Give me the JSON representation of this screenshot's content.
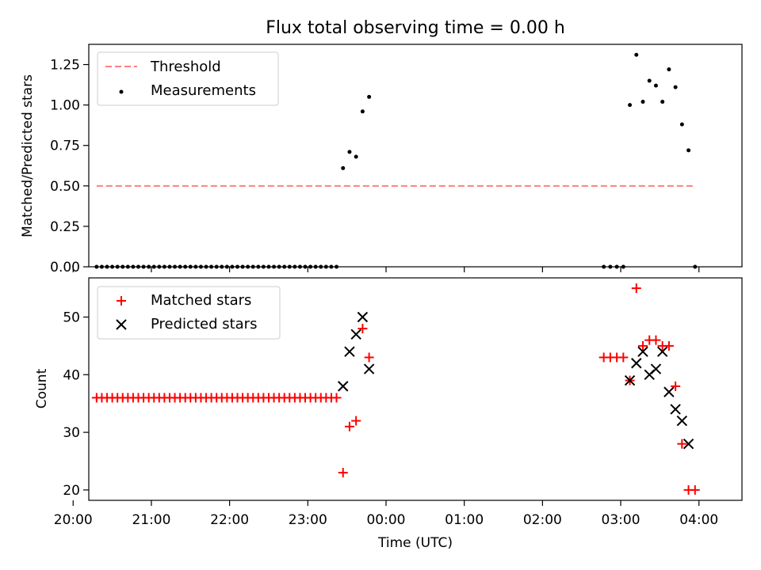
{
  "chart_data": [
    {
      "type": "scatter",
      "title": "Flux total observing time = 0.00 h",
      "ylabel": "Matched/Predicted stars",
      "ylim": [
        0,
        1.375
      ],
      "xlim": [
        "20:12",
        "04:33"
      ],
      "yticks": [
        "0.00",
        "0.25",
        "0.50",
        "0.75",
        "1.00",
        "1.25"
      ],
      "legend_position": "top-left",
      "series": [
        {
          "name": "Threshold",
          "style": "dashed-line",
          "color": "#ff7f7f",
          "points": [
            [
              "20:18",
              0.5
            ],
            [
              "03:56",
              0.5
            ]
          ]
        },
        {
          "name": "Measurements",
          "style": "dot",
          "color": "#000000",
          "points": [
            [
              "20:18",
              0.0
            ],
            [
              "20:22",
              0.0
            ],
            [
              "20:26",
              0.0
            ],
            [
              "20:30",
              0.0
            ],
            [
              "20:34",
              0.0
            ],
            [
              "20:38",
              0.0
            ],
            [
              "20:42",
              0.0
            ],
            [
              "20:46",
              0.0
            ],
            [
              "20:50",
              0.0
            ],
            [
              "20:54",
              0.0
            ],
            [
              "20:58",
              0.0
            ],
            [
              "21:02",
              0.0
            ],
            [
              "21:06",
              0.0
            ],
            [
              "21:10",
              0.0
            ],
            [
              "21:14",
              0.0
            ],
            [
              "21:18",
              0.0
            ],
            [
              "21:22",
              0.0
            ],
            [
              "21:26",
              0.0
            ],
            [
              "21:30",
              0.0
            ],
            [
              "21:34",
              0.0
            ],
            [
              "21:38",
              0.0
            ],
            [
              "21:42",
              0.0
            ],
            [
              "21:46",
              0.0
            ],
            [
              "21:50",
              0.0
            ],
            [
              "21:54",
              0.0
            ],
            [
              "21:58",
              0.0
            ],
            [
              "22:02",
              0.0
            ],
            [
              "22:06",
              0.0
            ],
            [
              "22:10",
              0.0
            ],
            [
              "22:14",
              0.0
            ],
            [
              "22:18",
              0.0
            ],
            [
              "22:22",
              0.0
            ],
            [
              "22:26",
              0.0
            ],
            [
              "22:30",
              0.0
            ],
            [
              "22:34",
              0.0
            ],
            [
              "22:38",
              0.0
            ],
            [
              "22:42",
              0.0
            ],
            [
              "22:46",
              0.0
            ],
            [
              "22:50",
              0.0
            ],
            [
              "22:54",
              0.0
            ],
            [
              "22:58",
              0.0
            ],
            [
              "23:02",
              0.0
            ],
            [
              "23:06",
              0.0
            ],
            [
              "23:10",
              0.0
            ],
            [
              "23:14",
              0.0
            ],
            [
              "23:18",
              0.0
            ],
            [
              "23:22",
              0.0
            ],
            [
              "23:27",
              0.61
            ],
            [
              "23:32",
              0.71
            ],
            [
              "23:37",
              0.68
            ],
            [
              "23:42",
              0.96
            ],
            [
              "23:47",
              1.05
            ],
            [
              "02:47",
              0.0
            ],
            [
              "02:52",
              0.0
            ],
            [
              "02:57",
              0.0
            ],
            [
              "03:02",
              0.0
            ],
            [
              "03:07",
              1.0
            ],
            [
              "03:12",
              1.31
            ],
            [
              "03:17",
              1.02
            ],
            [
              "03:22",
              1.15
            ],
            [
              "03:27",
              1.12
            ],
            [
              "03:32",
              1.02
            ],
            [
              "03:37",
              1.22
            ],
            [
              "03:42",
              1.11
            ],
            [
              "03:47",
              0.88
            ],
            [
              "03:52",
              0.72
            ],
            [
              "03:57",
              0.0
            ]
          ]
        }
      ]
    },
    {
      "type": "scatter",
      "xlabel": "Time (UTC)",
      "ylabel": "Count",
      "ylim": [
        18.2,
        56.8
      ],
      "xlim": [
        "20:12",
        "04:33"
      ],
      "yticks": [
        "20",
        "30",
        "40",
        "50"
      ],
      "xticks": [
        "20:00",
        "21:00",
        "22:00",
        "23:00",
        "00:00",
        "01:00",
        "02:00",
        "03:00",
        "04:00"
      ],
      "legend_position": "top-left",
      "series": [
        {
          "name": "Matched stars",
          "style": "plus",
          "color": "#ff0000",
          "points": [
            [
              "20:18",
              36
            ],
            [
              "20:22",
              36
            ],
            [
              "20:26",
              36
            ],
            [
              "20:30",
              36
            ],
            [
              "20:34",
              36
            ],
            [
              "20:38",
              36
            ],
            [
              "20:42",
              36
            ],
            [
              "20:46",
              36
            ],
            [
              "20:50",
              36
            ],
            [
              "20:54",
              36
            ],
            [
              "20:58",
              36
            ],
            [
              "21:02",
              36
            ],
            [
              "21:06",
              36
            ],
            [
              "21:10",
              36
            ],
            [
              "21:14",
              36
            ],
            [
              "21:18",
              36
            ],
            [
              "21:22",
              36
            ],
            [
              "21:26",
              36
            ],
            [
              "21:30",
              36
            ],
            [
              "21:34",
              36
            ],
            [
              "21:38",
              36
            ],
            [
              "21:42",
              36
            ],
            [
              "21:46",
              36
            ],
            [
              "21:50",
              36
            ],
            [
              "21:54",
              36
            ],
            [
              "21:58",
              36
            ],
            [
              "22:02",
              36
            ],
            [
              "22:06",
              36
            ],
            [
              "22:10",
              36
            ],
            [
              "22:14",
              36
            ],
            [
              "22:18",
              36
            ],
            [
              "22:22",
              36
            ],
            [
              "22:26",
              36
            ],
            [
              "22:30",
              36
            ],
            [
              "22:34",
              36
            ],
            [
              "22:38",
              36
            ],
            [
              "22:42",
              36
            ],
            [
              "22:46",
              36
            ],
            [
              "22:50",
              36
            ],
            [
              "22:54",
              36
            ],
            [
              "22:58",
              36
            ],
            [
              "23:02",
              36
            ],
            [
              "23:06",
              36
            ],
            [
              "23:10",
              36
            ],
            [
              "23:14",
              36
            ],
            [
              "23:18",
              36
            ],
            [
              "23:22",
              36
            ],
            [
              "23:27",
              23
            ],
            [
              "23:32",
              31
            ],
            [
              "23:37",
              32
            ],
            [
              "23:42",
              48
            ],
            [
              "23:47",
              43
            ],
            [
              "02:47",
              43
            ],
            [
              "02:52",
              43
            ],
            [
              "02:57",
              43
            ],
            [
              "03:02",
              43
            ],
            [
              "03:07",
              39
            ],
            [
              "03:12",
              55
            ],
            [
              "03:17",
              45
            ],
            [
              "03:22",
              46
            ],
            [
              "03:27",
              46
            ],
            [
              "03:32",
              45
            ],
            [
              "03:37",
              45
            ],
            [
              "03:42",
              38
            ],
            [
              "03:47",
              28
            ],
            [
              "03:52",
              20
            ],
            [
              "03:57",
              20
            ]
          ]
        },
        {
          "name": "Predicted stars",
          "style": "x",
          "color": "#000000",
          "points": [
            [
              "23:27",
              38
            ],
            [
              "23:32",
              44
            ],
            [
              "23:37",
              47
            ],
            [
              "23:42",
              50
            ],
            [
              "23:47",
              41
            ],
            [
              "03:07",
              39
            ],
            [
              "03:12",
              42
            ],
            [
              "03:17",
              44
            ],
            [
              "03:22",
              40
            ],
            [
              "03:27",
              41
            ],
            [
              "03:32",
              44
            ],
            [
              "03:37",
              37
            ],
            [
              "03:42",
              34
            ],
            [
              "03:47",
              32
            ],
            [
              "03:52",
              28
            ]
          ]
        }
      ]
    }
  ]
}
